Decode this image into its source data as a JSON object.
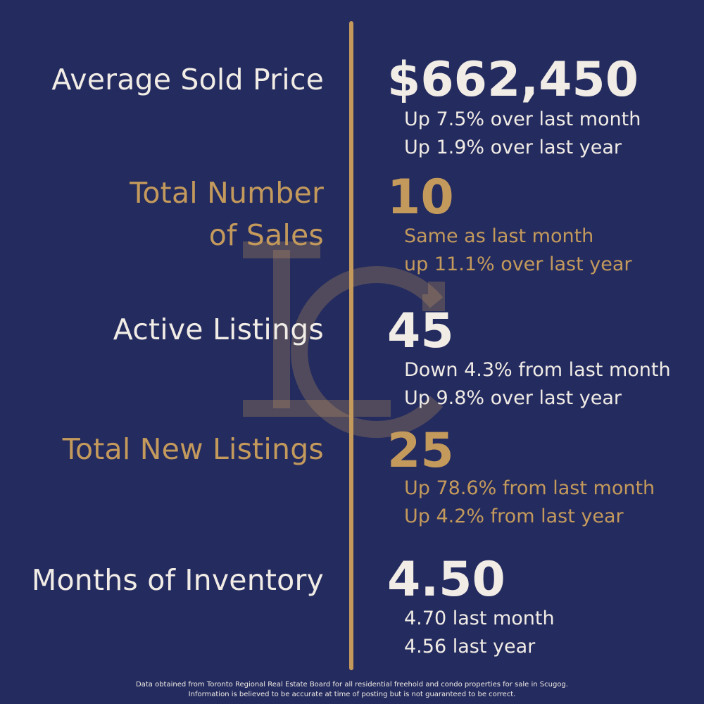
{
  "colors": {
    "background": "#242b5e",
    "gold": "#c49a5c",
    "cream": "#f1ece6"
  },
  "watermark": {
    "icon": "lc-monogram-logo"
  },
  "stats": [
    {
      "label": "Average Sold Price",
      "value": "$662,450",
      "sub1": "Up 7.5% over last month",
      "sub2": "Up 1.9% over last year",
      "color": "cream"
    },
    {
      "label_line1": "Total Number",
      "label_line2": "of Sales",
      "value": "10",
      "sub1": "Same as last month",
      "sub2": "up 11.1% over last year",
      "color": "gold"
    },
    {
      "label": "Active Listings",
      "value": "45",
      "sub1": "Down 4.3% from last month",
      "sub2": "Up 9.8% over last year",
      "color": "cream"
    },
    {
      "label": "Total New Listings",
      "value": "25",
      "sub1": "Up 78.6% from last month",
      "sub2": "Up 4.2% from last year",
      "color": "gold"
    },
    {
      "label": "Months of Inventory",
      "value": "4.50",
      "sub1": "4.70 last month",
      "sub2": "4.56 last year",
      "color": "cream"
    }
  ],
  "footer": {
    "line1": "Data obtained from Toronto Regional Real Estate Board for all residential freehold and condo properties for sale in Scugog.",
    "line2": "Information is believed to be accurate at time of posting but is not guaranteed to be correct."
  }
}
